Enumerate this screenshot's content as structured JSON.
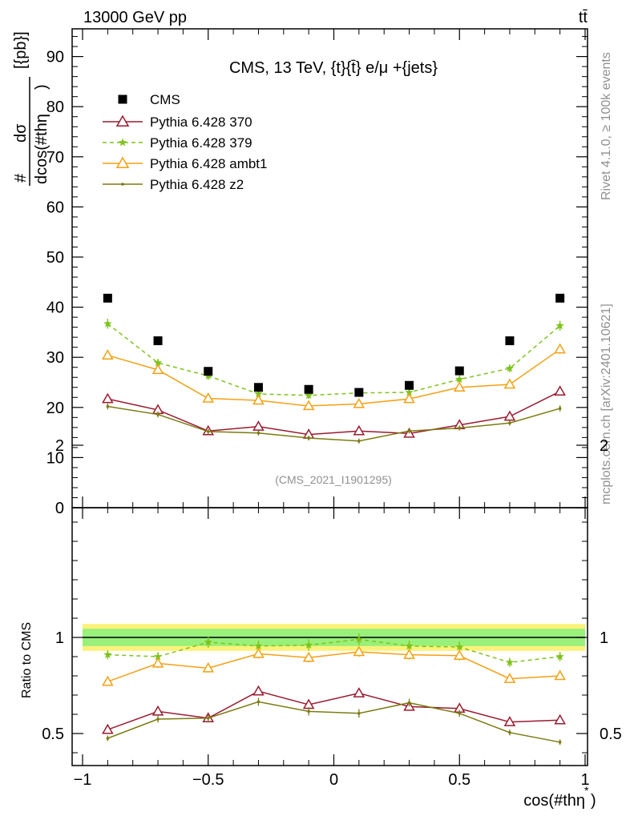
{
  "header": {
    "left": "13000 GeV pp",
    "right": "tt̄",
    "right_side_top": "Rivet 4.1.0, ≥ 100k events",
    "right_side_bottom": "mcplots.cern.ch [arXiv:2401.10621]"
  },
  "colors": {
    "cms": "#000000",
    "p370": "#9b1b30",
    "p379": "#7ec31c",
    "ambt1": "#f5a012",
    "z2": "#7a7a10",
    "band_inner": "#99f07a",
    "band_outer": "#fcf27a"
  },
  "chart_data": {
    "type": "line",
    "title": "CMS, 13 TeV, {t}{t̄} e/μ +{jets}",
    "analysis_label": "(CMS_2021_I1901295)",
    "xlabel": "cos(#thη",
    "xlabel_sup": "*",
    "ylabel_upper": "dσ",
    "ylabel_lower": "dcos(#thη",
    "ylabel_paren": ")",
    "ylabel_prefix": "#",
    "ylabel_unit": "[{pb}]",
    "ratio_ylabel": "Ratio to CMS",
    "xlim": [
      -1.0,
      1.0
    ],
    "ylim_main": [
      0,
      95
    ],
    "ylim_ratio": [
      0.35,
      2.35
    ],
    "x_tick_labels": [
      "−1",
      "−0.5",
      "0",
      "0.5",
      "1"
    ],
    "x_ticks": [
      -1,
      -0.5,
      0,
      0.5,
      1
    ],
    "y_ticks_main": [
      0,
      10,
      20,
      30,
      40,
      50,
      60,
      70,
      80,
      90
    ],
    "y_tick_labels_main": [
      "0",
      "10",
      "20",
      "30",
      "40",
      "50",
      "60",
      "70",
      "80",
      "90"
    ],
    "y_ticks_ratio": [
      0.5,
      1,
      2
    ],
    "y_tick_labels_ratio": [
      "0.5",
      "1",
      "2"
    ],
    "x": [
      -0.9,
      -0.7,
      -0.5,
      -0.3,
      -0.1,
      0.1,
      0.3,
      0.5,
      0.7,
      0.9
    ],
    "legend": [
      "CMS",
      "Pythia 6.428 370",
      "Pythia 6.428 379",
      "Pythia 6.428 ambt1",
      "Pythia 6.428 z2"
    ],
    "series": [
      {
        "name": "CMS",
        "key": "cms",
        "style": "square",
        "values": [
          41.8,
          33.3,
          27.2,
          24.0,
          23.6,
          23.0,
          24.4,
          27.3,
          33.3,
          41.8
        ]
      },
      {
        "name": "Pythia 6.428 370",
        "key": "p370",
        "style": "triangle",
        "values": [
          21.7,
          19.5,
          15.3,
          16.2,
          14.6,
          15.3,
          14.8,
          16.5,
          18.2,
          23.2
        ],
        "errors": [
          0.5,
          0.5,
          0.4,
          0.4,
          0.4,
          0.4,
          0.4,
          0.4,
          0.5,
          0.6
        ],
        "ratio": [
          0.52,
          0.615,
          0.58,
          0.72,
          0.65,
          0.71,
          0.64,
          0.63,
          0.56,
          0.57
        ]
      },
      {
        "name": "Pythia 6.428 379",
        "key": "p379",
        "style": "star",
        "dashed": true,
        "values": [
          36.7,
          28.9,
          26.3,
          22.7,
          22.4,
          22.9,
          23.0,
          25.6,
          27.8,
          36.3
        ],
        "errors": [
          1.0,
          0.8,
          0.8,
          0.7,
          0.7,
          0.7,
          0.7,
          0.8,
          0.8,
          1.0
        ],
        "ratio": [
          0.91,
          0.9,
          0.975,
          0.955,
          0.96,
          0.99,
          0.955,
          0.95,
          0.87,
          0.9
        ]
      },
      {
        "name": "Pythia 6.428 ambt1",
        "key": "ambt1",
        "style": "triangle",
        "values": [
          30.4,
          27.5,
          21.8,
          21.4,
          20.3,
          20.7,
          21.7,
          24.0,
          24.6,
          31.6
        ],
        "errors": [
          0.8,
          0.8,
          0.6,
          0.6,
          0.6,
          0.6,
          0.6,
          0.7,
          0.7,
          0.9
        ],
        "ratio": [
          0.77,
          0.865,
          0.84,
          0.915,
          0.895,
          0.925,
          0.91,
          0.905,
          0.785,
          0.8
        ]
      },
      {
        "name": "Pythia 6.428 z2",
        "key": "z2",
        "style": "dot",
        "values": [
          20.2,
          18.6,
          15.2,
          14.9,
          13.9,
          13.3,
          15.3,
          15.9,
          16.9,
          19.8
        ],
        "errors": [
          0.6,
          0.6,
          0.5,
          0.5,
          0.5,
          0.5,
          0.5,
          0.5,
          0.5,
          0.6
        ],
        "ratio": [
          0.475,
          0.575,
          0.58,
          0.665,
          0.615,
          0.605,
          0.66,
          0.605,
          0.505,
          0.455
        ]
      }
    ],
    "ratio_band_inner": 0.045,
    "ratio_band_outer": 0.07
  }
}
